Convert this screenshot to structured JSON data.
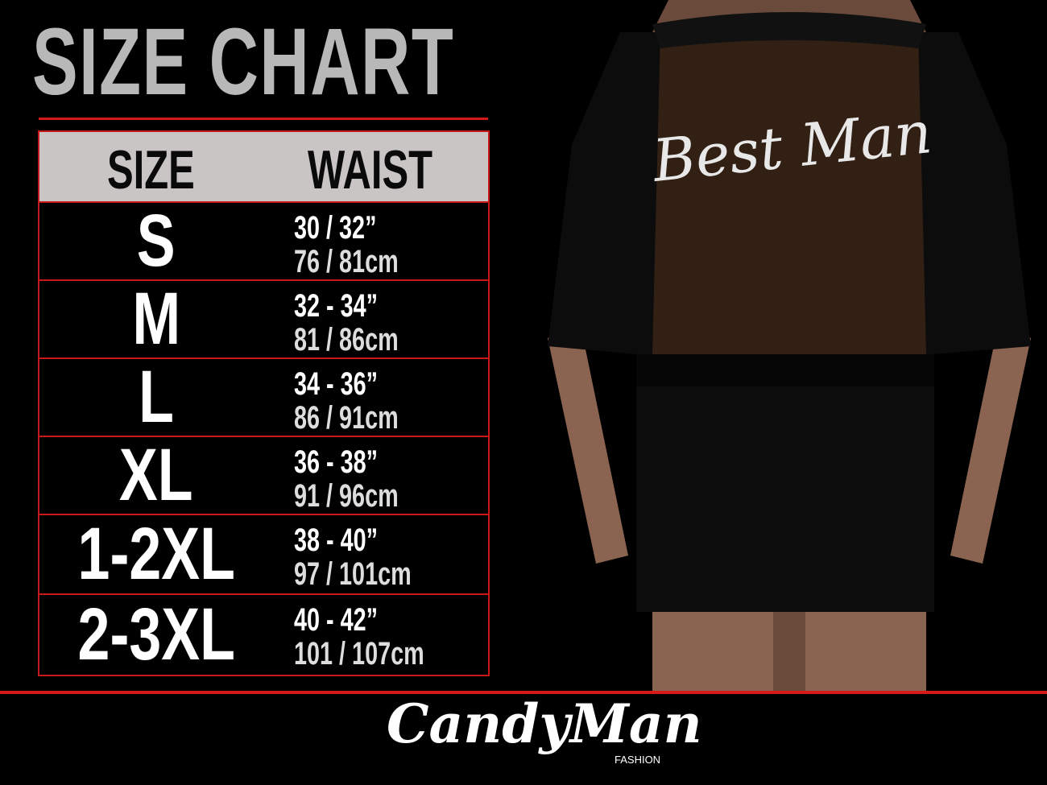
{
  "title": "SIZE CHART",
  "table": {
    "headers": [
      "SIZE",
      "WAIST"
    ],
    "rows": [
      {
        "size": "S",
        "inches": "30 / 32”",
        "cm": "76 / 81cm"
      },
      {
        "size": "M",
        "inches": "32 - 34”",
        "cm": "81 / 86cm"
      },
      {
        "size": "L",
        "inches": "34 - 36”",
        "cm": "86 / 91cm"
      },
      {
        "size": "XL",
        "inches": "36 - 38”",
        "cm": "91 / 96cm"
      },
      {
        "size": "1-2XL",
        "inches": "38 - 40”",
        "cm": "97 / 101cm"
      },
      {
        "size": "2-3XL",
        "inches": "40 - 42”",
        "cm": "101 / 107cm"
      }
    ]
  },
  "photo": {
    "garment_text": "Best Man"
  },
  "logo": {
    "name": "CandyMan",
    "tagline": "FASHION"
  },
  "colors": {
    "accent": "#d61a1a",
    "header_bg": "#c9c5c5",
    "title": "#b8b8b8",
    "background": "#000000"
  }
}
